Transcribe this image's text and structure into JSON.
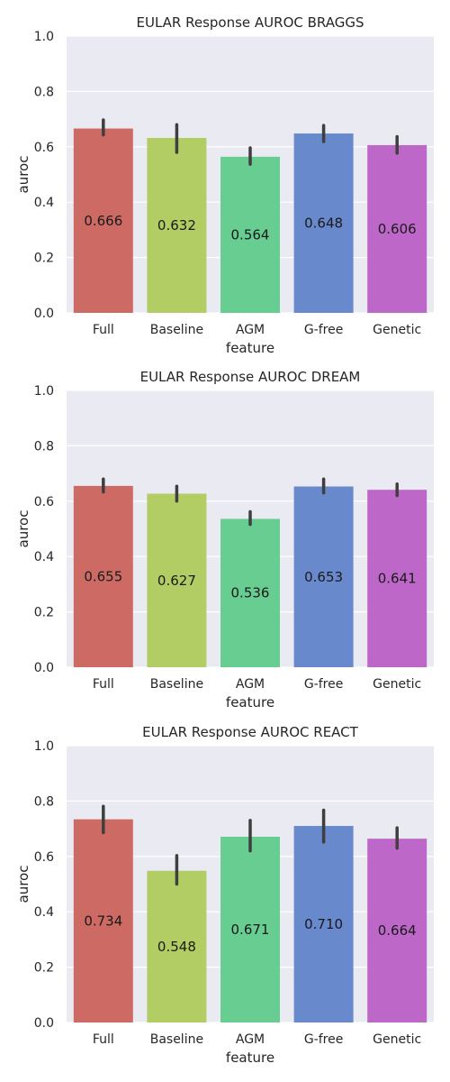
{
  "chart_data": [
    {
      "type": "bar",
      "title": "EULAR Response AUROC BRAGGS",
      "xlabel": "feature",
      "ylabel": "auroc",
      "ylim": [
        0,
        1.0
      ],
      "yticks": [
        "0.0",
        "0.2",
        "0.4",
        "0.6",
        "0.8",
        "1.0"
      ],
      "categories": [
        "Full",
        "Baseline",
        "AGM",
        "G-free",
        "Genetic"
      ],
      "values": [
        0.666,
        0.632,
        0.564,
        0.648,
        0.606
      ],
      "value_labels": [
        "0.666",
        "0.632",
        "0.564",
        "0.648",
        "0.606"
      ],
      "error_low": [
        0.643,
        0.58,
        0.537,
        0.619,
        0.577
      ],
      "error_high": [
        0.697,
        0.68,
        0.596,
        0.677,
        0.637
      ],
      "grid": true
    },
    {
      "type": "bar",
      "title": "EULAR Response AUROC DREAM",
      "xlabel": "feature",
      "ylabel": "auroc",
      "ylim": [
        0,
        1.0
      ],
      "yticks": [
        "0.0",
        "0.2",
        "0.4",
        "0.6",
        "0.8",
        "1.0"
      ],
      "categories": [
        "Full",
        "Baseline",
        "AGM",
        "G-free",
        "Genetic"
      ],
      "values": [
        0.655,
        0.627,
        0.536,
        0.653,
        0.641
      ],
      "value_labels": [
        "0.655",
        "0.627",
        "0.536",
        "0.653",
        "0.641"
      ],
      "error_low": [
        0.633,
        0.6,
        0.516,
        0.63,
        0.62
      ],
      "error_high": [
        0.68,
        0.654,
        0.562,
        0.68,
        0.662
      ],
      "grid": true
    },
    {
      "type": "bar",
      "title": "EULAR Response AUROC REACT",
      "xlabel": "feature",
      "ylabel": "auroc",
      "ylim": [
        0,
        1.0
      ],
      "yticks": [
        "0.0",
        "0.2",
        "0.4",
        "0.6",
        "0.8",
        "1.0"
      ],
      "categories": [
        "Full",
        "Baseline",
        "AGM",
        "G-free",
        "Genetic"
      ],
      "values": [
        0.734,
        0.548,
        0.671,
        0.71,
        0.664
      ],
      "value_labels": [
        "0.734",
        "0.548",
        "0.671",
        "0.710",
        "0.664"
      ],
      "error_low": [
        0.686,
        0.5,
        0.62,
        0.652,
        0.63
      ],
      "error_high": [
        0.781,
        0.603,
        0.73,
        0.767,
        0.703
      ],
      "grid": true
    }
  ],
  "colors": {
    "bars": [
      "#cc6a63",
      "#b2cd63",
      "#68cd90",
      "#6889cc",
      "#bd67c9"
    ],
    "plot_background": "#eaeaf2",
    "grid": "#ffffff",
    "error_bar": "#3f3f3f"
  }
}
